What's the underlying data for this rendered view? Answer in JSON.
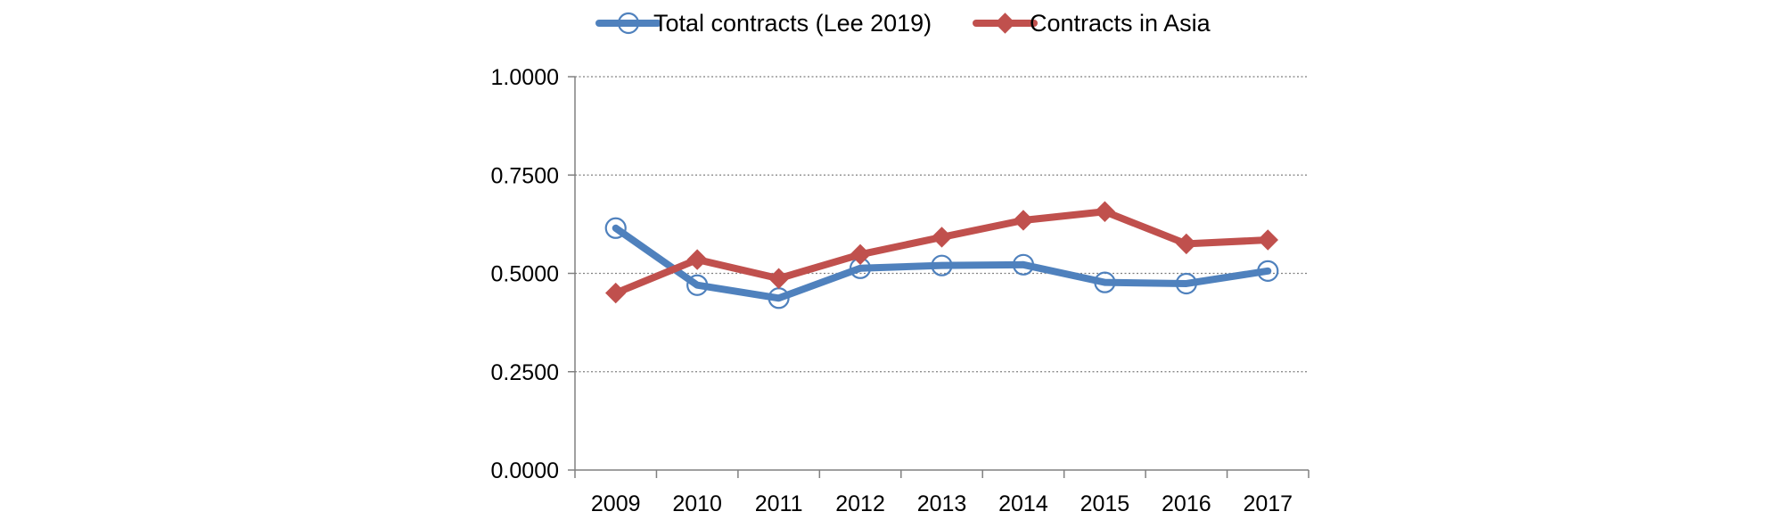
{
  "chart_data": {
    "type": "line",
    "title": "",
    "xlabel": "",
    "ylabel": "",
    "categories": [
      "2009",
      "2010",
      "2011",
      "2012",
      "2013",
      "2014",
      "2015",
      "2016",
      "2017"
    ],
    "ylim": [
      0,
      1
    ],
    "yticks": [
      0,
      0.25,
      0.5,
      0.75,
      1
    ],
    "ytick_labels": [
      "0.0000",
      "0.2500",
      "0.5000",
      "0.7500",
      "1.0000"
    ],
    "grid": "horizontal-dotted",
    "legend_position": "top",
    "series": [
      {
        "name": "Total contracts (Lee 2019)",
        "color": "#4f81bd",
        "marker": "open-circle",
        "values": [
          0.615,
          0.47,
          0.437,
          0.513,
          0.52,
          0.522,
          0.477,
          0.474,
          0.506
        ]
      },
      {
        "name": "Contracts in Asia",
        "color": "#c0504d",
        "marker": "diamond",
        "values": [
          0.45,
          0.535,
          0.487,
          0.548,
          0.592,
          0.635,
          0.657,
          0.575,
          0.585
        ]
      }
    ]
  }
}
